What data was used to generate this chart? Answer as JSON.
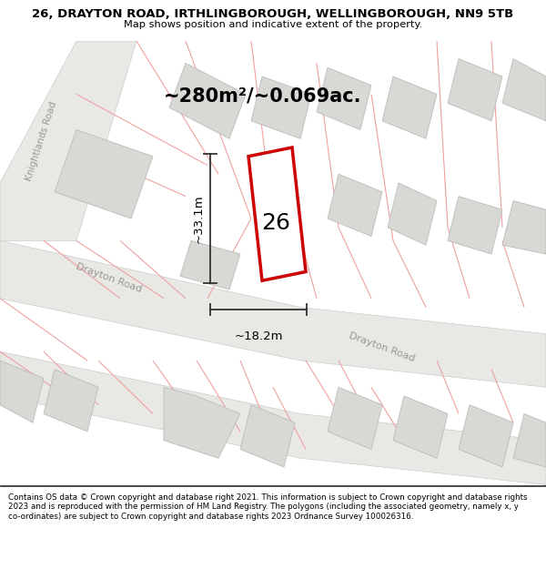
{
  "title": "26, DRAYTON ROAD, IRTHLINGBOROUGH, WELLINGBOROUGH, NN9 5TB",
  "subtitle": "Map shows position and indicative extent of the property.",
  "area_text": "~280m²/~0.069ac.",
  "dim_width": "~18.2m",
  "dim_height": "~33.1m",
  "plot_number": "26",
  "footer": "Contains OS data © Crown copyright and database right 2021. This information is subject to Crown copyright and database rights 2023 and is reproduced with the permission of HM Land Registry. The polygons (including the associated geometry, namely x, y co-ordinates) are subject to Crown copyright and database rights 2023 Ordnance Survey 100026316.",
  "bg_color": "#ffffff",
  "road_fill": "#e8e8e5",
  "road_stroke": "#cccccc",
  "plot_stroke": "#cc0000",
  "plot_fill": "#ffffff",
  "building_fill": "#d8d8d4",
  "building_stroke": "#bbbbba",
  "pink_line": "#f0a0a0",
  "dim_color": "#333333",
  "road_label_color": "#999990",
  "map_bg": "#ffffff"
}
